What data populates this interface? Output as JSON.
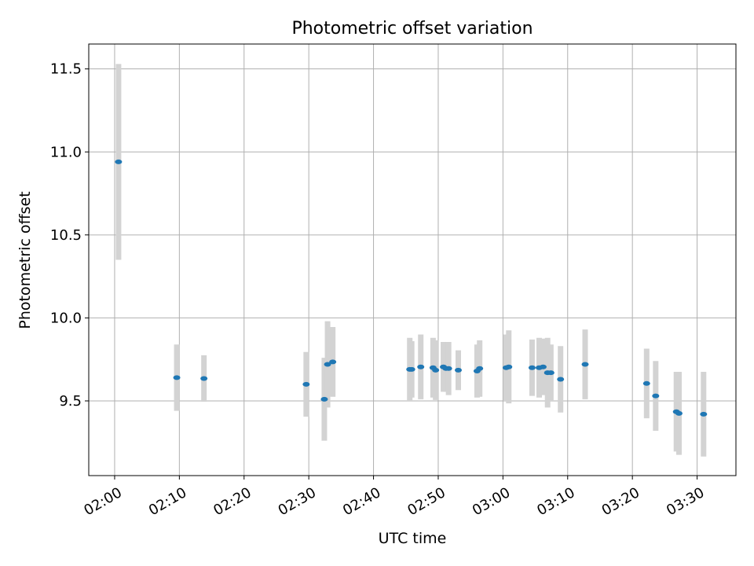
{
  "chart_data": {
    "type": "scatter",
    "title": "Photometric offset variation",
    "xlabel": "UTC time",
    "ylabel": "Photometric offset",
    "xlim": [
      "01:56",
      "03:36"
    ],
    "ylim": [
      9.05,
      11.65
    ],
    "x_ticks": [
      "02:00",
      "02:10",
      "02:20",
      "02:30",
      "02:40",
      "02:50",
      "03:00",
      "03:10",
      "03:20",
      "03:30"
    ],
    "y_ticks": [
      "9.5",
      "10.0",
      "10.5",
      "11.0",
      "11.5"
    ],
    "grid": true,
    "colors": {
      "marker": "#1f77b4",
      "errorbar": "#d3d3d3",
      "grid": "#b0b0b0"
    },
    "points": [
      {
        "x": "02:00:36",
        "y": 10.94,
        "err": 0.59
      },
      {
        "x": "02:09:36",
        "y": 9.64,
        "err": 0.2
      },
      {
        "x": "02:13:48",
        "y": 9.635,
        "err": 0.14
      },
      {
        "x": "02:29:36",
        "y": 9.6,
        "err": 0.195
      },
      {
        "x": "02:32:24",
        "y": 9.51,
        "err": 0.25
      },
      {
        "x": "02:32:54",
        "y": 9.72,
        "err": 0.26
      },
      {
        "x": "02:33:42",
        "y": 9.735,
        "err": 0.21
      },
      {
        "x": "02:45:36",
        "y": 9.69,
        "err": 0.19
      },
      {
        "x": "02:45:54",
        "y": 9.69,
        "err": 0.17
      },
      {
        "x": "02:47:18",
        "y": 9.705,
        "err": 0.195
      },
      {
        "x": "02:49:12",
        "y": 9.7,
        "err": 0.18
      },
      {
        "x": "02:49:36",
        "y": 9.685,
        "err": 0.18
      },
      {
        "x": "02:50:48",
        "y": 9.705,
        "err": 0.15
      },
      {
        "x": "02:51:12",
        "y": 9.695,
        "err": 0.14
      },
      {
        "x": "02:51:36",
        "y": 9.695,
        "err": 0.16
      },
      {
        "x": "02:53:06",
        "y": 9.685,
        "err": 0.12
      },
      {
        "x": "02:56:00",
        "y": 9.68,
        "err": 0.16
      },
      {
        "x": "02:56:24",
        "y": 9.695,
        "err": 0.17
      },
      {
        "x": "03:00:30",
        "y": 9.7,
        "err": 0.2
      },
      {
        "x": "03:00:54",
        "y": 9.705,
        "err": 0.22
      },
      {
        "x": "03:04:30",
        "y": 9.7,
        "err": 0.17
      },
      {
        "x": "03:05:36",
        "y": 9.7,
        "err": 0.18
      },
      {
        "x": "03:06:12",
        "y": 9.705,
        "err": 0.17
      },
      {
        "x": "03:06:54",
        "y": 9.67,
        "err": 0.21
      },
      {
        "x": "03:07:24",
        "y": 9.67,
        "err": 0.17
      },
      {
        "x": "03:08:54",
        "y": 9.63,
        "err": 0.2
      },
      {
        "x": "03:12:42",
        "y": 9.72,
        "err": 0.21
      },
      {
        "x": "03:22:12",
        "y": 9.605,
        "err": 0.21
      },
      {
        "x": "03:23:36",
        "y": 9.53,
        "err": 0.21
      },
      {
        "x": "03:26:48",
        "y": 9.435,
        "err": 0.24
      },
      {
        "x": "03:27:12",
        "y": 9.425,
        "err": 0.25
      },
      {
        "x": "03:31:00",
        "y": 9.42,
        "err": 0.255
      }
    ]
  }
}
